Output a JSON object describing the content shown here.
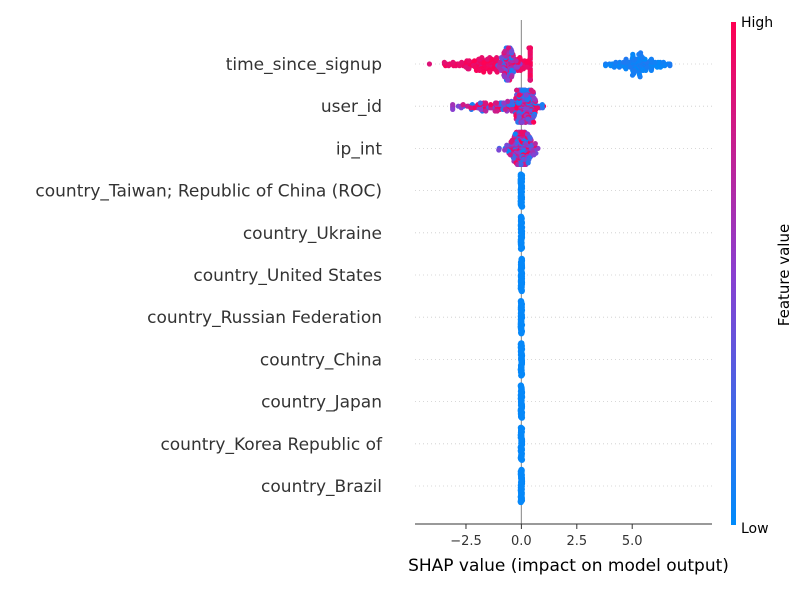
{
  "chart_data": {
    "type": "scatter",
    "title": "",
    "xlabel": "SHAP value (impact on model output)",
    "ylabel": "",
    "xlim": [
      -4.8,
      8.6
    ],
    "xticks": [
      -2.5,
      0.0,
      2.5,
      5.0
    ],
    "xtick_labels": [
      "−2.5",
      "0.0",
      "2.5",
      "5.0"
    ],
    "grid": false,
    "colorbar": {
      "label": "Feature value",
      "high_label": "High",
      "low_label": "Low",
      "low_color": "#008bfb",
      "high_color": "#ff0052"
    },
    "features": [
      {
        "name": "time_since_signup",
        "clusters": [
          {
            "center": -1.0,
            "spread": 1.2,
            "min": -4.3,
            "max": 0.4,
            "color": "high",
            "weight": 1.0
          },
          {
            "center": -0.6,
            "spread": 0.2,
            "min": -1.2,
            "max": 0.0,
            "color": "mixed",
            "weight": 0.5
          },
          {
            "center": 5.3,
            "spread": 0.6,
            "min": 3.8,
            "max": 6.8,
            "color": "low",
            "weight": 0.6
          }
        ]
      },
      {
        "name": "user_id",
        "clusters": [
          {
            "center": 0.1,
            "spread": 0.35,
            "min": -3.1,
            "max": 1.0,
            "color": "mixed",
            "weight": 1.0
          },
          {
            "center": -1.2,
            "spread": 0.9,
            "min": -3.1,
            "max": -0.1,
            "color": "mixed",
            "weight": 0.5
          }
        ]
      },
      {
        "name": "ip_int",
        "clusters": [
          {
            "center": 0.0,
            "spread": 0.35,
            "min": -2.0,
            "max": 1.4,
            "color": "mixed",
            "weight": 1.0
          }
        ]
      },
      {
        "name": "country_Taiwan; Republic of China (ROC)",
        "clusters": [
          {
            "center": 0.0,
            "spread": 0.01,
            "min": -0.02,
            "max": 0.02,
            "color": "low",
            "weight": 1.0
          }
        ]
      },
      {
        "name": "country_Ukraine",
        "clusters": [
          {
            "center": 0.0,
            "spread": 0.01,
            "min": -0.02,
            "max": 0.02,
            "color": "low",
            "weight": 1.0
          }
        ]
      },
      {
        "name": "country_United States",
        "clusters": [
          {
            "center": 0.0,
            "spread": 0.01,
            "min": -0.02,
            "max": 0.02,
            "color": "low",
            "weight": 1.0
          }
        ]
      },
      {
        "name": "country_Russian Federation",
        "clusters": [
          {
            "center": 0.0,
            "spread": 0.01,
            "min": -0.02,
            "max": 0.02,
            "color": "low",
            "weight": 1.0
          }
        ]
      },
      {
        "name": "country_China",
        "clusters": [
          {
            "center": 0.0,
            "spread": 0.01,
            "min": -0.02,
            "max": 0.02,
            "color": "low",
            "weight": 1.0
          }
        ]
      },
      {
        "name": "country_Japan",
        "clusters": [
          {
            "center": 0.0,
            "spread": 0.01,
            "min": -0.02,
            "max": 0.02,
            "color": "low",
            "weight": 1.0
          }
        ]
      },
      {
        "name": "country_Korea Republic of",
        "clusters": [
          {
            "center": 0.0,
            "spread": 0.01,
            "min": -0.02,
            "max": 0.02,
            "color": "low",
            "weight": 1.0
          }
        ]
      },
      {
        "name": "country_Brazil",
        "clusters": [
          {
            "center": 0.0,
            "spread": 0.01,
            "min": -0.02,
            "max": 0.02,
            "color": "low",
            "weight": 1.0
          }
        ]
      }
    ]
  }
}
